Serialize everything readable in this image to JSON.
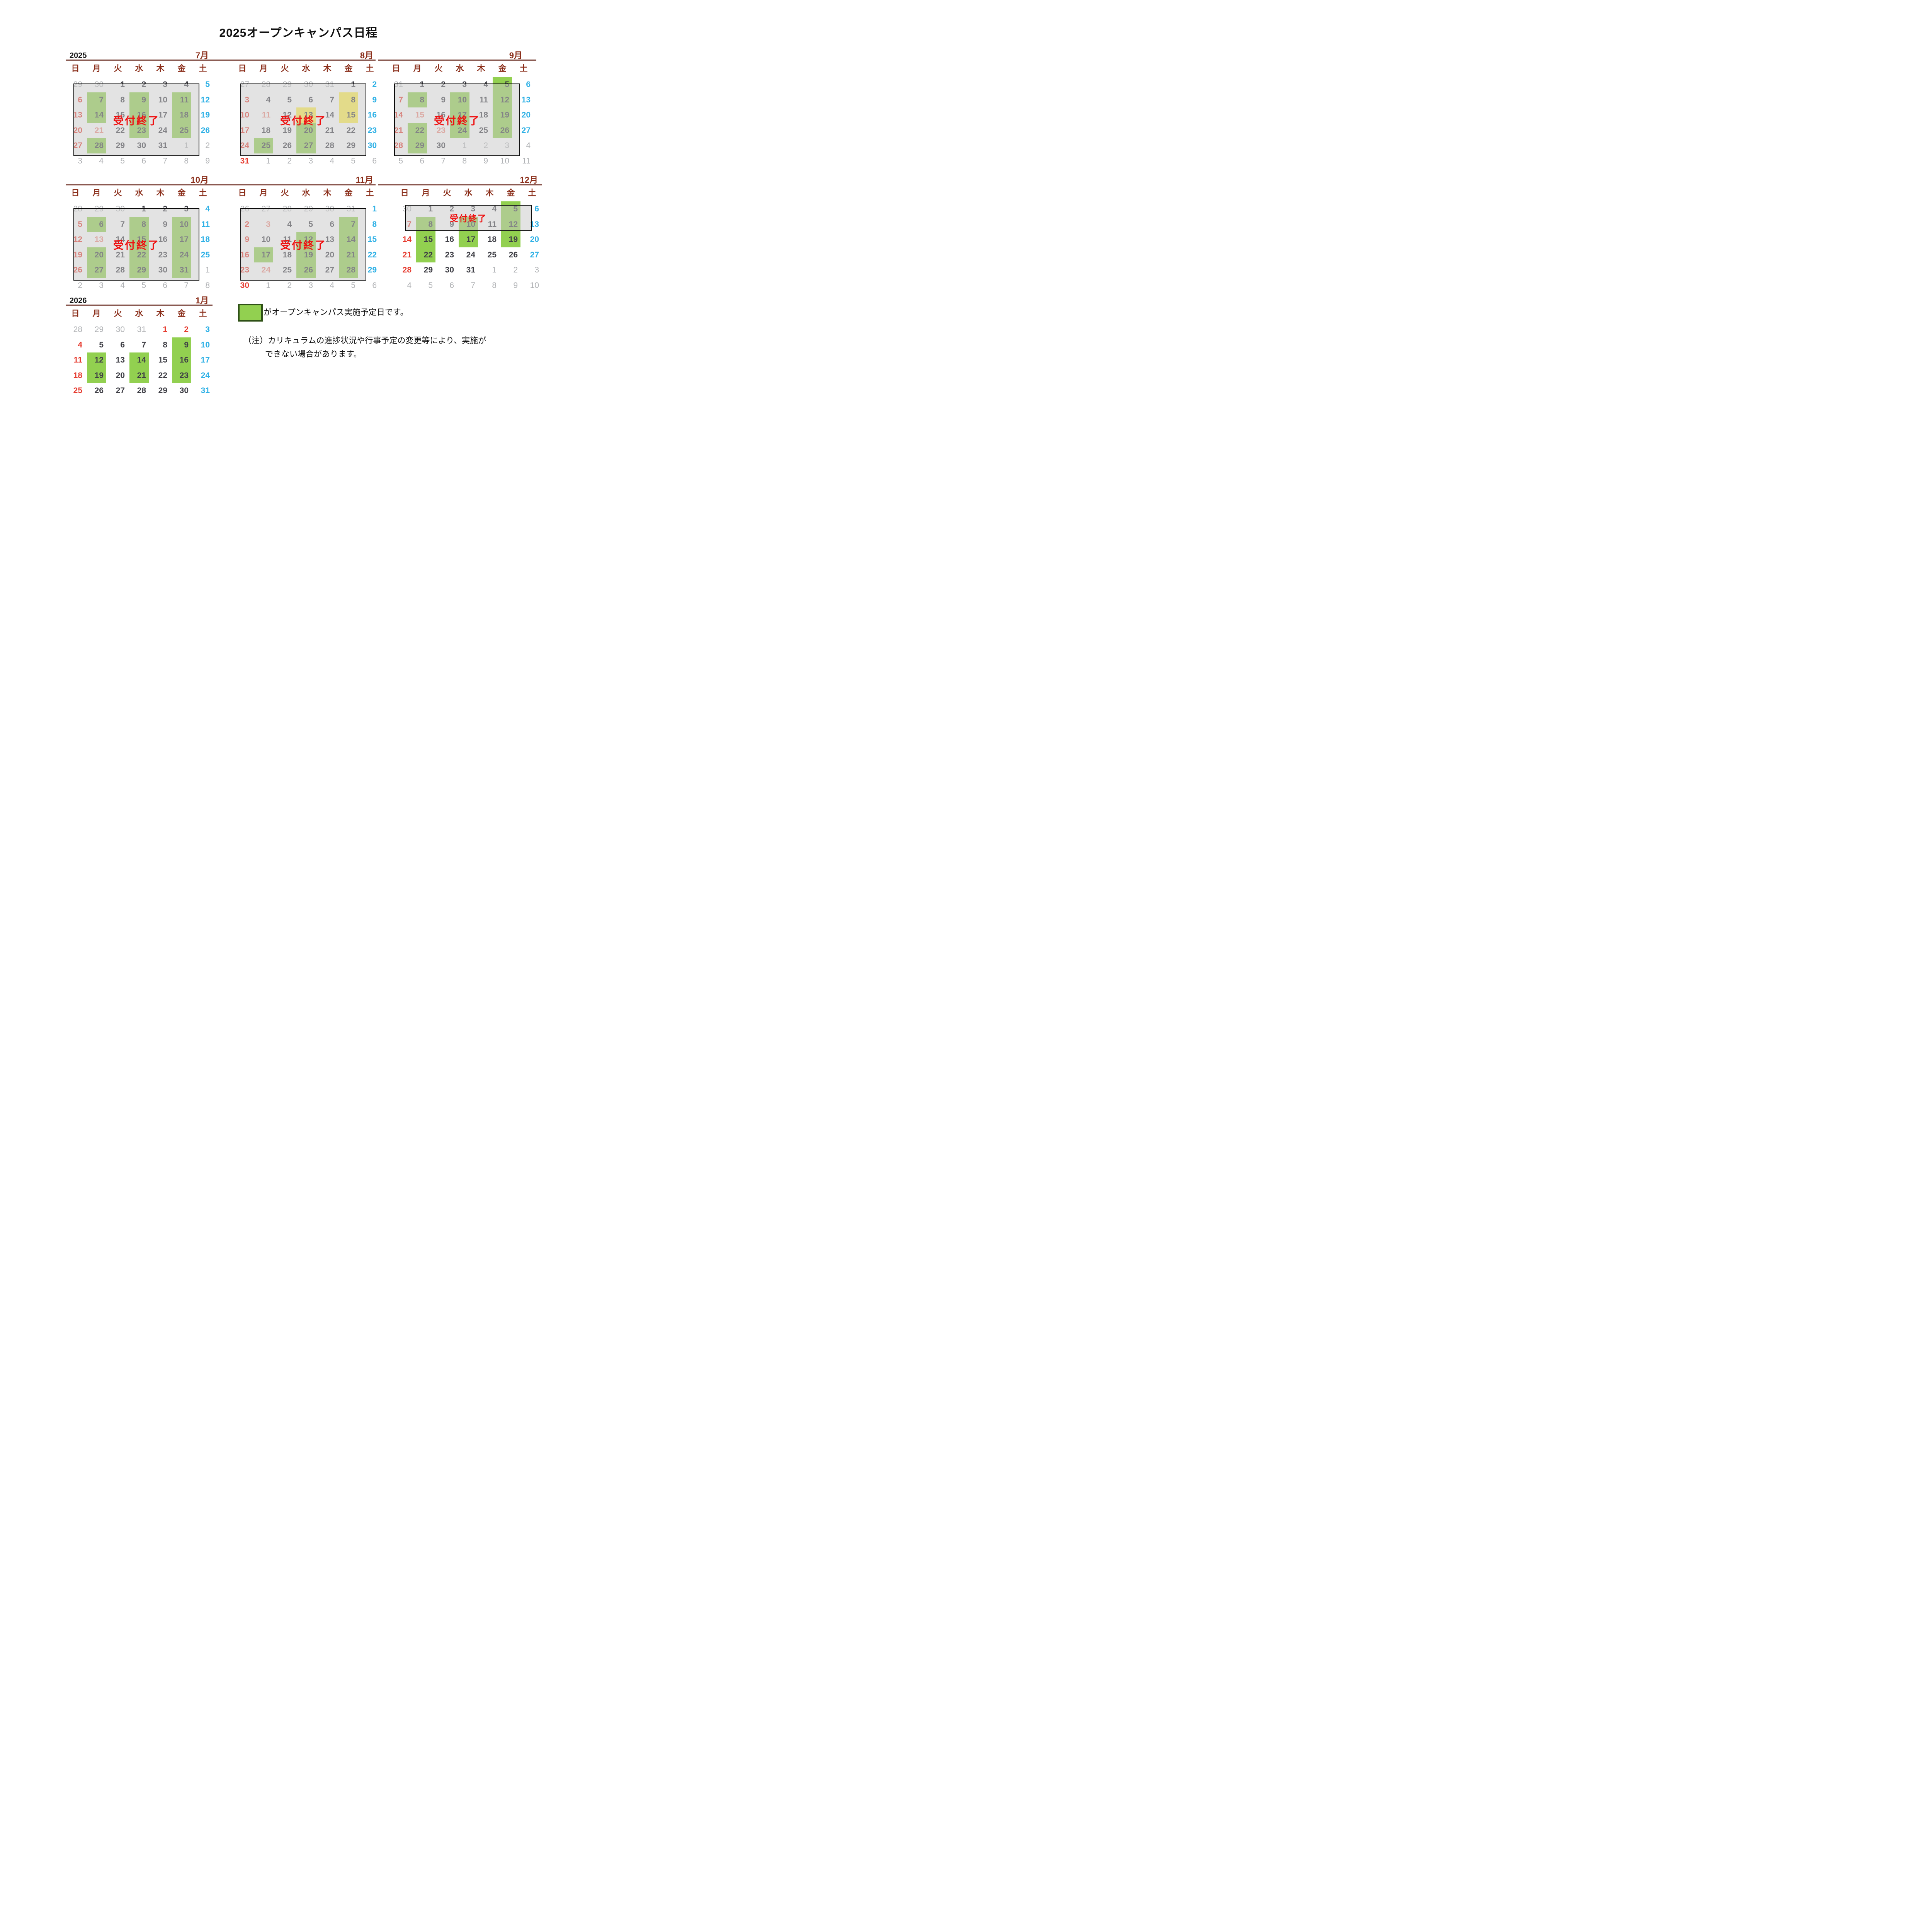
{
  "title": "2025オープンキャンパス日程",
  "weekday_headers": [
    "日",
    "月",
    "火",
    "水",
    "木",
    "金",
    "土"
  ],
  "reception_closed_label": "受付終了",
  "legend": {
    "text": "がオープンキャンパス実施予定日です。"
  },
  "note": {
    "line1": "（注）カリキュラムの進捗状況や行事予定の変更等により、実施が",
    "line2": "できない場合があります。"
  },
  "colors": {
    "open_campus_green": "#92d050",
    "closed_yellow": "#ffee4d",
    "sunday_red": "#e63c30",
    "saturday_blue": "#2fb1e6",
    "holiday_pink": "#ef8a7e",
    "weekday_dark": "#3f3f46",
    "other_month_gray": "#aeb0b3",
    "header_brown": "#8b2f1b",
    "reception_red": "#ee1111"
  },
  "months": [
    {
      "key": "2025-07",
      "year_label": "2025",
      "month_label": "7月",
      "overlay": "full",
      "weeks": [
        [
          "29",
          "30",
          "1",
          "2",
          "3",
          "4",
          "5"
        ],
        [
          "6",
          "7",
          "8",
          "9",
          "10",
          "11",
          "12"
        ],
        [
          "13",
          "14",
          "15",
          "16",
          "17",
          "18",
          "19"
        ],
        [
          "20",
          "21",
          "22",
          "23",
          "24",
          "25",
          "26"
        ],
        [
          "27",
          "28",
          "29",
          "30",
          "31",
          "1",
          "2"
        ],
        [
          "3",
          "4",
          "5",
          "6",
          "7",
          "8",
          "9"
        ]
      ],
      "kinds": [
        "ppwwwwb",
        "swwwwwb",
        "swwwwwb",
        "shwwwwb",
        "swwwwpp",
        "ppppppp"
      ],
      "marks": [
        "-------",
        "-g-g-g-",
        "-g-g-g-",
        "---g-g-",
        "-g-----",
        "-------"
      ]
    },
    {
      "key": "2025-08",
      "year_label": "",
      "month_label": "8月",
      "overlay": "full",
      "weeks": [
        [
          "27",
          "28",
          "29",
          "30",
          "31",
          "1",
          "2"
        ],
        [
          "3",
          "4",
          "5",
          "6",
          "7",
          "8",
          "9"
        ],
        [
          "10",
          "11",
          "12",
          "13",
          "14",
          "15",
          "16"
        ],
        [
          "17",
          "18",
          "19",
          "20",
          "21",
          "22",
          "23"
        ],
        [
          "24",
          "25",
          "26",
          "27",
          "28",
          "29",
          "30"
        ],
        [
          "31",
          "1",
          "2",
          "3",
          "4",
          "5",
          "6"
        ]
      ],
      "kinds": [
        "pppppwb",
        "swwwwwb",
        "shwwwwb",
        "swwwwwb",
        "swwwwwb",
        "spppppp"
      ],
      "marks": [
        "-------",
        "-----y-",
        "---y-y-",
        "---g---",
        "-g-g---",
        "-------"
      ]
    },
    {
      "key": "2025-09",
      "year_label": "",
      "month_label": "9月",
      "overlay": "full",
      "weeks": [
        [
          "31",
          "1",
          "2",
          "3",
          "4",
          "5",
          "6"
        ],
        [
          "7",
          "8",
          "9",
          "10",
          "11",
          "12",
          "13"
        ],
        [
          "14",
          "15",
          "16",
          "17",
          "18",
          "19",
          "20"
        ],
        [
          "21",
          "22",
          "23",
          "24",
          "25",
          "26",
          "27"
        ],
        [
          "28",
          "29",
          "30",
          "1",
          "2",
          "3",
          "4"
        ],
        [
          "5",
          "6",
          "7",
          "8",
          "9",
          "10",
          "11"
        ]
      ],
      "kinds": [
        "pwwwwwb",
        "swwwwwb",
        "shwwwwb",
        "swhwwwb",
        "swwpppp",
        "ppppppp"
      ],
      "marks": [
        "-----g-",
        "-g-g-g-",
        "---g-g-",
        "-g-g-g-",
        "-g-----",
        "-------"
      ]
    },
    {
      "key": "2025-10",
      "year_label": "",
      "month_label": "10月",
      "overlay": "full",
      "weeks": [
        [
          "28",
          "29",
          "30",
          "1",
          "2",
          "3",
          "4"
        ],
        [
          "5",
          "6",
          "7",
          "8",
          "9",
          "10",
          "11"
        ],
        [
          "12",
          "13",
          "14",
          "15",
          "16",
          "17",
          "18"
        ],
        [
          "19",
          "20",
          "21",
          "22",
          "23",
          "24",
          "25"
        ],
        [
          "26",
          "27",
          "28",
          "29",
          "30",
          "31",
          "1"
        ],
        [
          "2",
          "3",
          "4",
          "5",
          "6",
          "7",
          "8"
        ]
      ],
      "kinds": [
        "pppwwwb",
        "swwwwwb",
        "shwwwwb",
        "swwwwwb",
        "swwwwwp",
        "ppppppp"
      ],
      "marks": [
        "-------",
        "-g-g-g-",
        "---g-g-",
        "-g-g-g-",
        "-g-g-g-",
        "-------"
      ]
    },
    {
      "key": "2025-11",
      "year_label": "",
      "month_label": "11月",
      "overlay": "full",
      "weeks": [
        [
          "26",
          "27",
          "28",
          "29",
          "30",
          "31",
          "1"
        ],
        [
          "2",
          "3",
          "4",
          "5",
          "6",
          "7",
          "8"
        ],
        [
          "9",
          "10",
          "11",
          "12",
          "13",
          "14",
          "15"
        ],
        [
          "16",
          "17",
          "18",
          "19",
          "20",
          "21",
          "22"
        ],
        [
          "23",
          "24",
          "25",
          "26",
          "27",
          "28",
          "29"
        ],
        [
          "30",
          "1",
          "2",
          "3",
          "4",
          "5",
          "6"
        ]
      ],
      "kinds": [
        "ppppppb",
        "shwwwwb",
        "swwwwwb",
        "swwwwwb",
        "shwwwwb",
        "spppppp"
      ],
      "marks": [
        "-------",
        "-----g-",
        "---g-g-",
        "-g-g-g-",
        "---g-g-",
        "-------"
      ]
    },
    {
      "key": "2025-12",
      "year_label": "",
      "month_label": "12月",
      "overlay": "strip",
      "weeks": [
        [
          "30",
          "1",
          "2",
          "3",
          "4",
          "5",
          "6"
        ],
        [
          "7",
          "8",
          "9",
          "10",
          "11",
          "12",
          "13"
        ],
        [
          "14",
          "15",
          "16",
          "17",
          "18",
          "19",
          "20"
        ],
        [
          "21",
          "22",
          "23",
          "24",
          "25",
          "26",
          "27"
        ],
        [
          "28",
          "29",
          "30",
          "31",
          "1",
          "2",
          "3"
        ],
        [
          "4",
          "5",
          "6",
          "7",
          "8",
          "9",
          "10"
        ]
      ],
      "kinds": [
        "pwwwwwb",
        "swwwwwb",
        "swwwwwb",
        "swwwwwb",
        "swwwppp",
        "ppppppp"
      ],
      "marks": [
        "-----g-",
        "-g-g-g-",
        "-g-g-g-",
        "-g-----",
        "-------",
        "-------"
      ]
    },
    {
      "key": "2026-01",
      "year_label": "2026",
      "month_label": "1月",
      "overlay": "none",
      "weeks": [
        [
          "28",
          "29",
          "30",
          "31",
          "1",
          "2",
          "3"
        ],
        [
          "4",
          "5",
          "6",
          "7",
          "8",
          "9",
          "10"
        ],
        [
          "11",
          "12",
          "13",
          "14",
          "15",
          "16",
          "17"
        ],
        [
          "18",
          "19",
          "20",
          "21",
          "22",
          "23",
          "24"
        ],
        [
          "25",
          "26",
          "27",
          "28",
          "29",
          "30",
          "31"
        ]
      ],
      "kinds": [
        "ppppssb",
        "swwwwwb",
        "swwwwwb",
        "swwwwwb",
        "swwwwwb"
      ],
      "marks": [
        "-------",
        "-----g-",
        "-g-g-g-",
        "-g-g-g-",
        "-------"
      ]
    }
  ]
}
